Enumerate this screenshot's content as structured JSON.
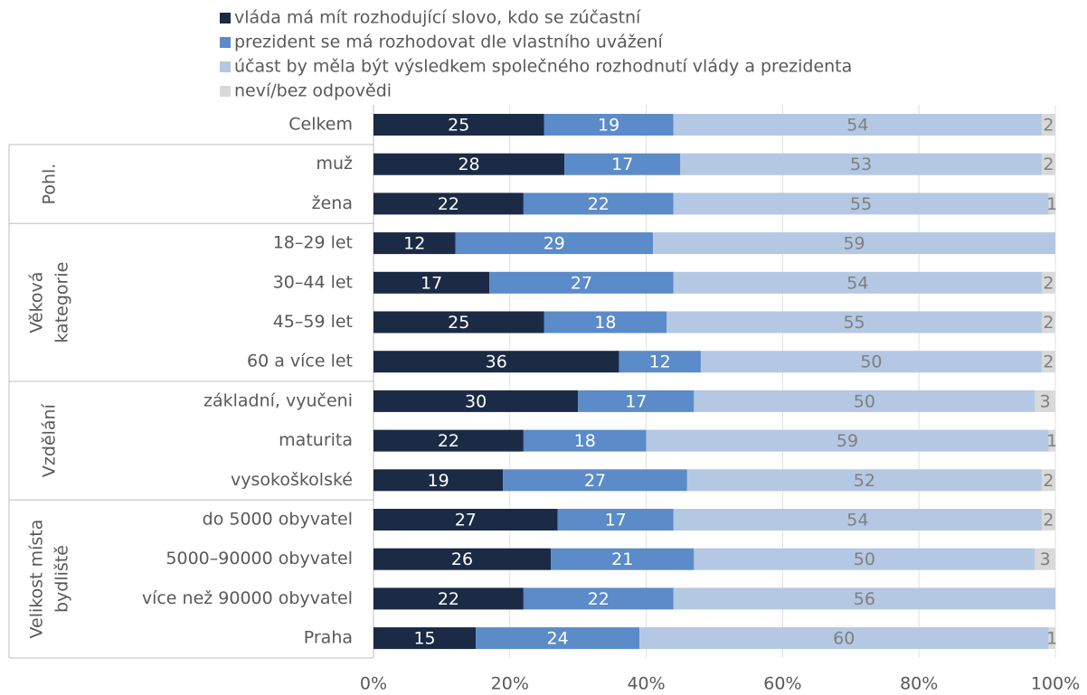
{
  "chart_data": {
    "type": "stacked-bar-horizontal",
    "categories": [
      "Celkem",
      "muž",
      "žena",
      "18–29 let",
      "30–44 let",
      "45–59 let",
      "60 a více let",
      "základní, vyučeni",
      "maturita",
      "vysokoškolské",
      "do 5000 obyvatel",
      "5000–90000 obyvatel",
      "více než 90000 obyvatel",
      "Praha"
    ],
    "groups": [
      {
        "label": [
          "Pohl."
        ],
        "from": 1,
        "to": 2
      },
      {
        "label": [
          "Věková",
          "kategorie"
        ],
        "from": 3,
        "to": 6
      },
      {
        "label": [
          "Vzdělání"
        ],
        "from": 7,
        "to": 9
      },
      {
        "label": [
          "Velikost místa",
          "bydliště"
        ],
        "from": 10,
        "to": 13
      }
    ],
    "series": [
      {
        "name": "vláda má mít rozhodující slovo, kdo se zúčastní",
        "color": "#1b2a45",
        "label_color": "#ffffff",
        "values": [
          25,
          28,
          22,
          12,
          17,
          25,
          36,
          30,
          22,
          19,
          27,
          26,
          22,
          15
        ]
      },
      {
        "name": "prezident se má rozhodovat dle vlastního uvážení",
        "color": "#5b8bc8",
        "label_color": "#ffffff",
        "values": [
          19,
          17,
          22,
          29,
          27,
          18,
          12,
          17,
          18,
          27,
          17,
          21,
          22,
          24
        ]
      },
      {
        "name": "účast by měla být výsledkem společného rozhodnutí vlády a prezidenta",
        "color": "#b4c8e4",
        "label_color": "#7f7f7f",
        "values": [
          54,
          53,
          55,
          59,
          54,
          55,
          50,
          50,
          59,
          52,
          54,
          50,
          56,
          60
        ]
      },
      {
        "name": "neví/bez odpovědi",
        "color": "#d9d9d9",
        "label_color": "#7f7f7f",
        "values": [
          2,
          2,
          1,
          null,
          2,
          2,
          2,
          3,
          1,
          2,
          2,
          3,
          null,
          1
        ]
      }
    ],
    "xlim": [
      0,
      100
    ],
    "xticks": [
      {
        "value": 0,
        "label": "0%"
      },
      {
        "value": 20,
        "label": "20%"
      },
      {
        "value": 40,
        "label": "40%"
      },
      {
        "value": 60,
        "label": "60%"
      },
      {
        "value": 80,
        "label": "80%"
      },
      {
        "value": 100,
        "label": "100%"
      }
    ],
    "grid": true
  }
}
